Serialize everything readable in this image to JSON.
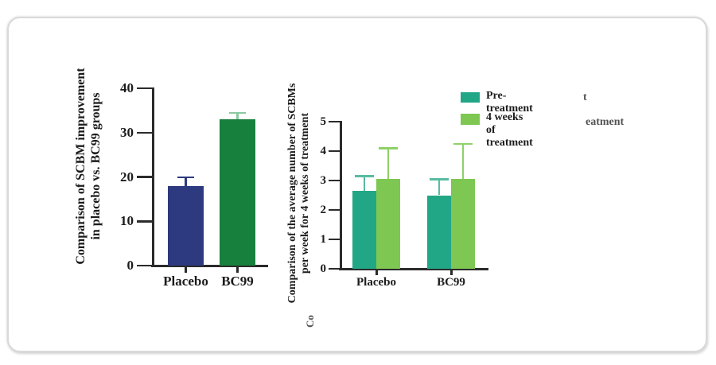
{
  "style": {
    "axis_color": "#2b2b2b",
    "text_color": "#1b1b1b",
    "card_border": "#d9d9d9",
    "card_background": "#ffffff"
  },
  "chart_data": [
    {
      "type": "bar",
      "title": "",
      "ylabel": "Comparison of SCBM improvement in placebo vs. BC99 groups",
      "ylabel_lines": [
        "Comparison of SCBM improvement",
        "in placebo vs. BC99 groups"
      ],
      "xlabel": "",
      "categories": [
        "Placebo",
        "BC99"
      ],
      "values": [
        18,
        33
      ],
      "errors_upper": [
        2,
        1.5
      ],
      "ylim": [
        0,
        40
      ],
      "yticks": [
        0,
        10,
        20,
        30,
        40
      ],
      "grid": false,
      "bar_colors": [
        "#2d3a7f",
        "#17803c"
      ],
      "error_colors": [
        "#2d3a7f",
        "#8bc9a0"
      ]
    },
    {
      "type": "grouped_bar",
      "title": "",
      "ylabel": "Comparison of the average number of SCBMs per week for 4 weeks of treatment",
      "ylabel_lines": [
        "Comparison of the average number of SCBMs",
        "per week for 4 weeks of treatment"
      ],
      "xlabel": "",
      "categories": [
        "Placebo",
        "BC99"
      ],
      "series": [
        {
          "name": "Pre-treatment",
          "values": [
            2.65,
            2.5
          ],
          "errors_upper": [
            0.5,
            0.55
          ],
          "color": "#22a786",
          "error_color": "#58bba2"
        },
        {
          "name": "4 weeks of treatment",
          "values": [
            3.05,
            3.05
          ],
          "errors_upper": [
            1.05,
            1.2
          ],
          "color": "#7dc752",
          "error_color": "#8dd168"
        }
      ],
      "ylim": [
        0,
        5
      ],
      "yticks": [
        0,
        1,
        2,
        3,
        4,
        5
      ],
      "grid": false,
      "legend_position": "top-right"
    }
  ],
  "artifacts": {
    "legend_ghost_1": "t",
    "legend_ghost_2": "eatment",
    "ylabel_ghost": "Co"
  }
}
